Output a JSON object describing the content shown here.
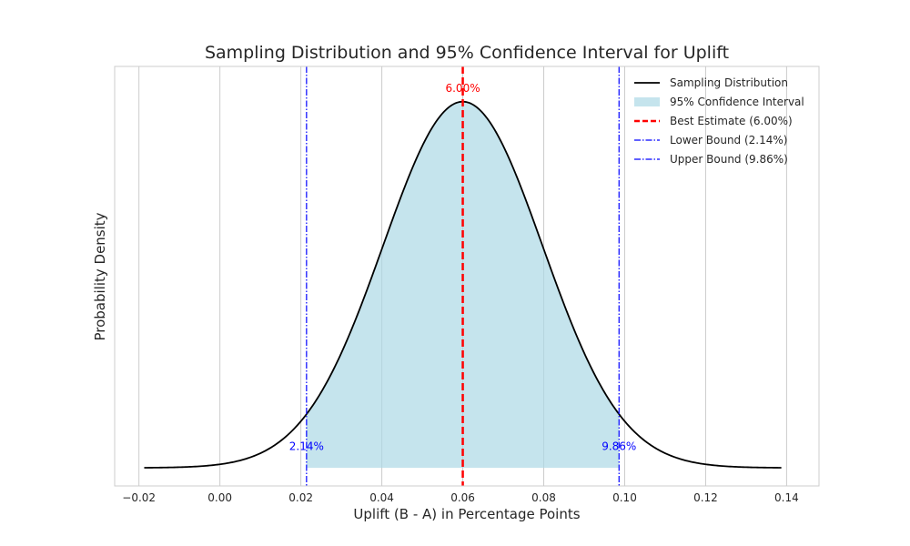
{
  "chart_data": {
    "type": "area",
    "title": "Sampling Distribution and 95% Confidence Interval for Uplift",
    "xlabel": "Uplift (B - A) in Percentage Points",
    "ylabel": "Probability Density",
    "xlim": [
      -0.026,
      0.148
    ],
    "ylim": [
      -1.0,
      22.2
    ],
    "x_ticks": [
      -0.02,
      0.0,
      0.02,
      0.04,
      0.06,
      0.08,
      0.1,
      0.12,
      0.14
    ],
    "x_tick_labels": [
      "−0.02",
      "0.00",
      "0.02",
      "0.04",
      "0.06",
      "0.08",
      "0.10",
      "0.12",
      "0.14"
    ],
    "y_ticks_visible": false,
    "grid": "vertical",
    "legend_position": "top-right",
    "distribution": {
      "mean": 0.06,
      "std_error": 0.0197,
      "x_min": -0.0187,
      "x_max": 0.1387
    },
    "ci_lower": 0.0214,
    "ci_upper": 0.0986,
    "series": [
      {
        "name": "Sampling Distribution",
        "kind": "line",
        "color": "#000000"
      },
      {
        "name": "95% Confidence Interval",
        "kind": "fill",
        "color": "#add8e6"
      },
      {
        "name": "Best Estimate (6.00%)",
        "kind": "vline",
        "x": 0.06,
        "color": "#ff0000"
      },
      {
        "name": "Lower Bound (2.14%)",
        "kind": "vline",
        "x": 0.0214,
        "color": "#0000ff"
      },
      {
        "name": "Upper Bound (9.86%)",
        "kind": "vline",
        "x": 0.0986,
        "color": "#0000ff"
      }
    ],
    "annotations": [
      {
        "text": "6.00%",
        "x": 0.06,
        "y": 21.0,
        "color": "#ff0000"
      },
      {
        "text": "2.14%",
        "x": 0.0214,
        "y": 1.2,
        "color": "#0000ff"
      },
      {
        "text": "9.86%",
        "x": 0.0986,
        "y": 1.2,
        "color": "#0000ff"
      }
    ]
  }
}
